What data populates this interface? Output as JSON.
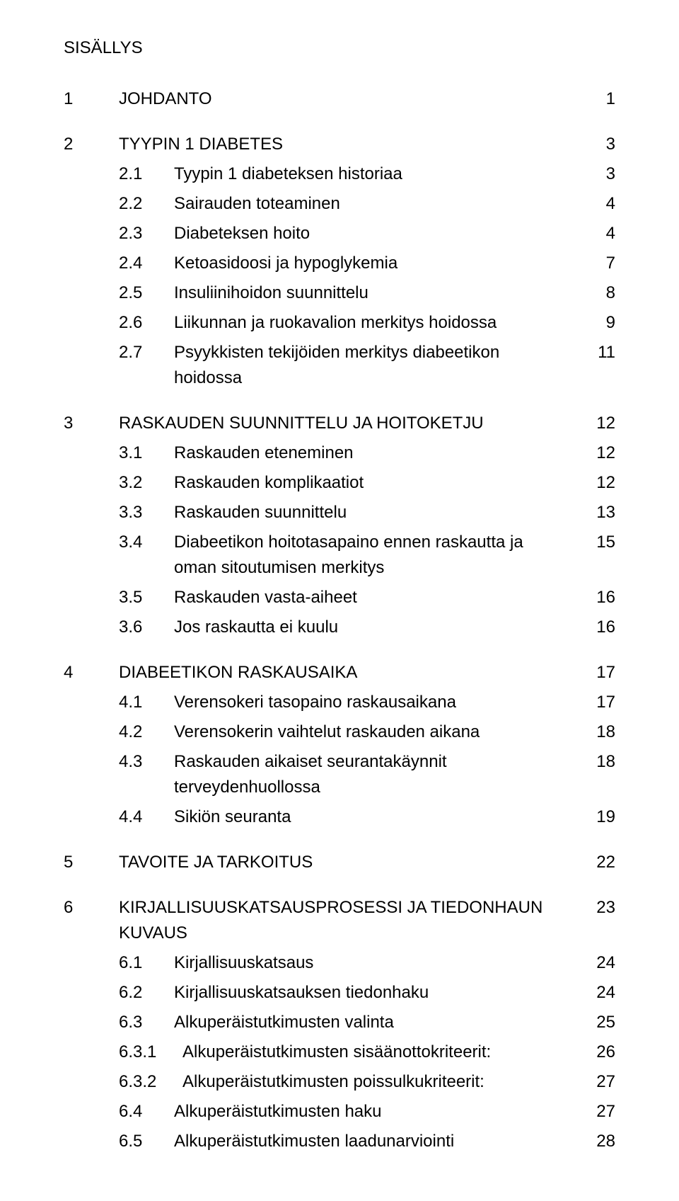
{
  "title": "SISÄLLYS",
  "fontsize_body": 24,
  "text_color": "#000000",
  "background_color": "#ffffff",
  "entries": [
    {
      "level": 0,
      "num": "1",
      "text": "JOHDANTO",
      "page": "1",
      "gap": true
    },
    {
      "level": 0,
      "num": "2",
      "text": "TYYPIN 1 DIABETES",
      "page": "3",
      "gap": true
    },
    {
      "level": 1,
      "num": "2.1",
      "text": "Tyypin 1 diabeteksen historiaa",
      "page": "3"
    },
    {
      "level": 1,
      "num": "2.2",
      "text": "Sairauden toteaminen",
      "page": "4"
    },
    {
      "level": 1,
      "num": "2.3",
      "text": "Diabeteksen hoito",
      "page": "4"
    },
    {
      "level": 1,
      "num": "2.4",
      "text": "Ketoasidoosi ja hypoglykemia",
      "page": "7"
    },
    {
      "level": 1,
      "num": "2.5",
      "text": "Insuliinihoidon suunnittelu",
      "page": "8"
    },
    {
      "level": 1,
      "num": "2.6",
      "text": "Liikunnan ja ruokavalion merkitys hoidossa",
      "page": "9"
    },
    {
      "level": 1,
      "num": "2.7",
      "text": "Psyykkisten tekijöiden merkitys diabeetikon hoidossa",
      "page": "11"
    },
    {
      "level": 0,
      "num": "3",
      "text": "RASKAUDEN SUUNNITTELU JA HOITOKETJU",
      "page": "12",
      "gap": true
    },
    {
      "level": 1,
      "num": "3.1",
      "text": "Raskauden eteneminen",
      "page": "12"
    },
    {
      "level": 1,
      "num": "3.2",
      "text": "Raskauden komplikaatiot",
      "page": "12"
    },
    {
      "level": 1,
      "num": "3.3",
      "text": "Raskauden suunnittelu",
      "page": "13"
    },
    {
      "level": 1,
      "num": "3.4",
      "text": "Diabeetikon hoitotasapaino ennen raskautta ja oman sitoutumisen merkitys",
      "page": "15"
    },
    {
      "level": 1,
      "num": "3.5",
      "text": "Raskauden vasta-aiheet",
      "page": "16"
    },
    {
      "level": 1,
      "num": "3.6",
      "text": "Jos raskautta ei kuulu",
      "page": "16"
    },
    {
      "level": 0,
      "num": "4",
      "text": "DIABEETIKON RASKAUSAIKA",
      "page": "17",
      "gap": true
    },
    {
      "level": 1,
      "num": "4.1",
      "text": "Verensokeri tasopaino raskausaikana",
      "page": "17"
    },
    {
      "level": 1,
      "num": "4.2",
      "text": "Verensokerin vaihtelut raskauden aikana",
      "page": "18"
    },
    {
      "level": 1,
      "num": "4.3",
      "text": "Raskauden aikaiset seurantakäynnit terveydenhuollossa",
      "page": "18"
    },
    {
      "level": 1,
      "num": "4.4",
      "text": "Sikiön seuranta",
      "page": "19"
    },
    {
      "level": 0,
      "num": "5",
      "text": "TAVOITE JA TARKOITUS",
      "page": "22",
      "gap": true
    },
    {
      "level": 0,
      "num": "6",
      "text": "KIRJALLISUUSKATSAUSPROSESSI JA TIEDONHAUN KUVAUS",
      "page": "23",
      "gap": true
    },
    {
      "level": 1,
      "num": "6.1",
      "text": "Kirjallisuuskatsaus",
      "page": "24"
    },
    {
      "level": 1,
      "num": "6.2",
      "text": "Kirjallisuuskatsauksen tiedonhaku",
      "page": "24"
    },
    {
      "level": 1,
      "num": "6.3",
      "text": "Alkuperäistutkimusten valinta",
      "page": "25"
    },
    {
      "level": 2,
      "num": "6.3.1",
      "text": "Alkuperäistutkimusten sisäänottokriteerit:",
      "page": "26"
    },
    {
      "level": 2,
      "num": "6.3.2",
      "text": "Alkuperäistutkimusten poissulkukriteerit:",
      "page": "27"
    },
    {
      "level": 1,
      "num": "6.4",
      "text": "Alkuperäistutkimusten haku",
      "page": "27"
    },
    {
      "level": 1,
      "num": "6.5",
      "text": "Alkuperäistutkimusten laadunarviointi",
      "page": "28"
    }
  ]
}
